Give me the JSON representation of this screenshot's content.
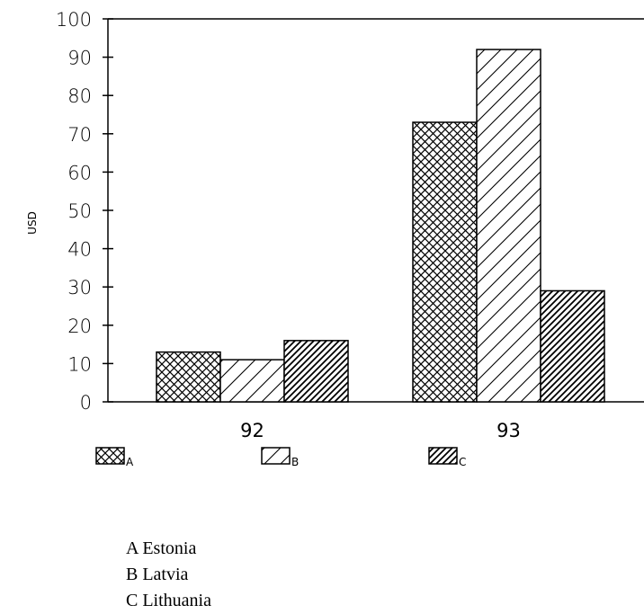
{
  "chart_data": {
    "type": "bar",
    "title": "",
    "xlabel": "",
    "ylabel": "USD",
    "ylim": [
      0,
      100
    ],
    "yticks": [
      0,
      10,
      20,
      30,
      40,
      50,
      60,
      70,
      80,
      90,
      100
    ],
    "categories": [
      "92",
      "93"
    ],
    "series": [
      {
        "name": "A",
        "values": [
          13,
          73
        ],
        "pattern": "crosshatch"
      },
      {
        "name": "B",
        "values": [
          11,
          92
        ],
        "pattern": "diagonal-wide"
      },
      {
        "name": "C",
        "values": [
          16,
          29
        ],
        "pattern": "diagonal-dense"
      }
    ],
    "grid": false,
    "legend_position": "bottom"
  },
  "notes": [
    "A Estonia",
    "B Latvia",
    "C Lithuania"
  ]
}
